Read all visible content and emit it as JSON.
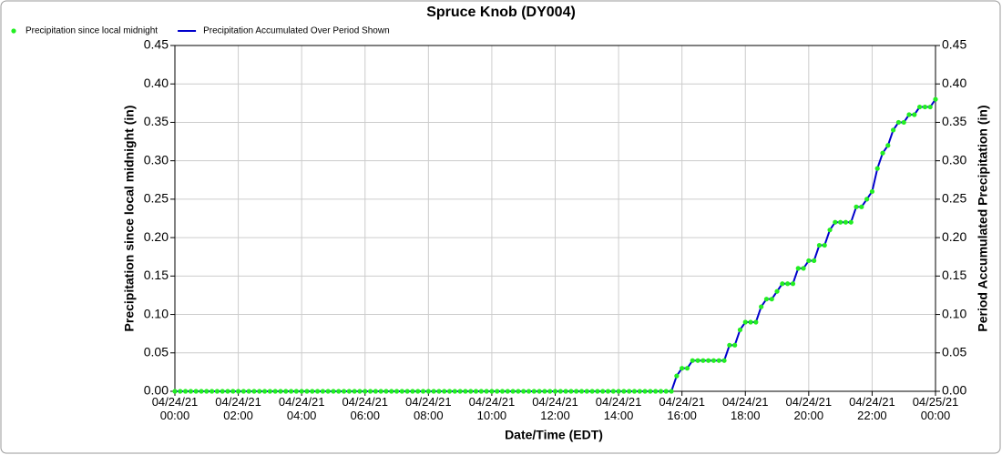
{
  "chart_data": {
    "type": "line",
    "title": "Spruce Knob (DY004)",
    "x_label": "Date/Time (EDT)",
    "y_label": "Precipitation since local midnight (in)",
    "y2_label": "Period Accumulated Precipitation (in)",
    "xlim": [
      0,
      1440
    ],
    "xticks": [
      {
        "value": 0,
        "label": "04/24/21 00:00"
      },
      {
        "value": 120,
        "label": "04/24/21 02:00"
      },
      {
        "value": 240,
        "label": "04/24/21 04:00"
      },
      {
        "value": 360,
        "label": "04/24/21 06:00"
      },
      {
        "value": 480,
        "label": "04/24/21 08:00"
      },
      {
        "value": 600,
        "label": "04/24/21 10:00"
      },
      {
        "value": 720,
        "label": "04/24/21 12:00"
      },
      {
        "value": 840,
        "label": "04/24/21 14:00"
      },
      {
        "value": 960,
        "label": "04/24/21 16:00"
      },
      {
        "value": 1080,
        "label": "04/24/21 18:00"
      },
      {
        "value": 1200,
        "label": "04/24/21 20:00"
      },
      {
        "value": 1320,
        "label": "04/24/21 22:00"
      },
      {
        "value": 1440,
        "label": "04/25/21 00:00"
      }
    ],
    "ylim": [
      0,
      0.45
    ],
    "yticks": [
      {
        "value": 0,
        "label": "0.00"
      },
      {
        "value": 0.05,
        "label": "0.05"
      },
      {
        "value": 0.1,
        "label": "0.10"
      },
      {
        "value": 0.15,
        "label": "0.15"
      },
      {
        "value": 0.2,
        "label": "0.20"
      },
      {
        "value": 0.25,
        "label": "0.25"
      },
      {
        "value": 0.3,
        "label": "0.30"
      },
      {
        "value": 0.35,
        "label": "0.35"
      },
      {
        "value": 0.4,
        "label": "0.40"
      },
      {
        "value": 0.45,
        "label": "0.45"
      }
    ],
    "y2lim": [
      0,
      0.45
    ],
    "y2ticks": [
      {
        "value": 0,
        "label": "0.00"
      },
      {
        "value": 0.05,
        "label": "0.05"
      },
      {
        "value": 0.1,
        "label": "0.10"
      },
      {
        "value": 0.15,
        "label": "0.15"
      },
      {
        "value": 0.2,
        "label": "0.20"
      },
      {
        "value": 0.25,
        "label": "0.25"
      },
      {
        "value": 0.3,
        "label": "0.30"
      },
      {
        "value": 0.35,
        "label": "0.35"
      },
      {
        "value": 0.4,
        "label": "0.40"
      },
      {
        "value": 0.45,
        "label": "0.45"
      }
    ],
    "grid": true,
    "x": [
      0,
      10,
      20,
      30,
      40,
      50,
      60,
      70,
      80,
      90,
      100,
      110,
      120,
      130,
      140,
      150,
      160,
      170,
      180,
      190,
      200,
      210,
      220,
      230,
      240,
      250,
      260,
      270,
      280,
      290,
      300,
      310,
      320,
      330,
      340,
      350,
      360,
      370,
      380,
      390,
      400,
      410,
      420,
      430,
      440,
      450,
      460,
      470,
      480,
      490,
      500,
      510,
      520,
      530,
      540,
      550,
      560,
      570,
      580,
      590,
      600,
      610,
      620,
      630,
      640,
      650,
      660,
      670,
      680,
      690,
      700,
      710,
      720,
      730,
      740,
      750,
      760,
      770,
      780,
      790,
      800,
      810,
      820,
      830,
      840,
      850,
      860,
      870,
      880,
      890,
      900,
      910,
      920,
      930,
      940,
      950,
      960,
      970,
      980,
      990,
      1000,
      1010,
      1020,
      1030,
      1040,
      1050,
      1060,
      1070,
      1080,
      1090,
      1100,
      1110,
      1120,
      1130,
      1140,
      1150,
      1160,
      1170,
      1180,
      1190,
      1200,
      1210,
      1220,
      1230,
      1240,
      1250,
      1260,
      1270,
      1280,
      1290,
      1300,
      1310,
      1320,
      1330,
      1340,
      1350,
      1360,
      1370,
      1380,
      1390,
      1400,
      1410,
      1420,
      1430,
      1440
    ],
    "series": [
      {
        "name": "Precipitation since local midnight",
        "color": "#22ee22",
        "style": "dots",
        "values": [
          0,
          0,
          0,
          0,
          0,
          0,
          0,
          0,
          0,
          0,
          0,
          0,
          0,
          0,
          0,
          0,
          0,
          0,
          0,
          0,
          0,
          0,
          0,
          0,
          0,
          0,
          0,
          0,
          0,
          0,
          0,
          0,
          0,
          0,
          0,
          0,
          0,
          0,
          0,
          0,
          0,
          0,
          0,
          0,
          0,
          0,
          0,
          0,
          0,
          0,
          0,
          0,
          0,
          0,
          0,
          0,
          0,
          0,
          0,
          0,
          0,
          0,
          0,
          0,
          0,
          0,
          0,
          0,
          0,
          0,
          0,
          0,
          0,
          0,
          0,
          0,
          0,
          0,
          0,
          0,
          0,
          0,
          0,
          0,
          0,
          0,
          0,
          0,
          0,
          0,
          0,
          0,
          0,
          0,
          0,
          0.02,
          0.03,
          0.03,
          0.04,
          0.04,
          0.04,
          0.04,
          0.04,
          0.04,
          0.04,
          0.06,
          0.06,
          0.08,
          0.09,
          0.09,
          0.09,
          0.11,
          0.12,
          0.12,
          0.13,
          0.14,
          0.14,
          0.14,
          0.16,
          0.16,
          0.17,
          0.17,
          0.19,
          0.19,
          0.21,
          0.22,
          0.22,
          0.22,
          0.22,
          0.24,
          0.24,
          0.25,
          0.26,
          0.29,
          0.31,
          0.32,
          0.34,
          0.35,
          0.35,
          0.36,
          0.36,
          0.37,
          0.37,
          0.37,
          0.38
        ]
      },
      {
        "name": "Precipitation Accumulated Over Period Shown",
        "color": "#0000cc",
        "style": "line",
        "axis": "y2",
        "values": [
          0,
          0,
          0,
          0,
          0,
          0,
          0,
          0,
          0,
          0,
          0,
          0,
          0,
          0,
          0,
          0,
          0,
          0,
          0,
          0,
          0,
          0,
          0,
          0,
          0,
          0,
          0,
          0,
          0,
          0,
          0,
          0,
          0,
          0,
          0,
          0,
          0,
          0,
          0,
          0,
          0,
          0,
          0,
          0,
          0,
          0,
          0,
          0,
          0,
          0,
          0,
          0,
          0,
          0,
          0,
          0,
          0,
          0,
          0,
          0,
          0,
          0,
          0,
          0,
          0,
          0,
          0,
          0,
          0,
          0,
          0,
          0,
          0,
          0,
          0,
          0,
          0,
          0,
          0,
          0,
          0,
          0,
          0,
          0,
          0,
          0,
          0,
          0,
          0,
          0,
          0,
          0,
          0,
          0,
          0,
          0.02,
          0.03,
          0.03,
          0.04,
          0.04,
          0.04,
          0.04,
          0.04,
          0.04,
          0.04,
          0.06,
          0.06,
          0.08,
          0.09,
          0.09,
          0.09,
          0.11,
          0.12,
          0.12,
          0.13,
          0.14,
          0.14,
          0.14,
          0.16,
          0.16,
          0.17,
          0.17,
          0.19,
          0.19,
          0.21,
          0.22,
          0.22,
          0.22,
          0.22,
          0.24,
          0.24,
          0.25,
          0.26,
          0.29,
          0.31,
          0.32,
          0.34,
          0.35,
          0.35,
          0.36,
          0.36,
          0.37,
          0.37,
          0.37,
          0.38
        ]
      }
    ]
  }
}
